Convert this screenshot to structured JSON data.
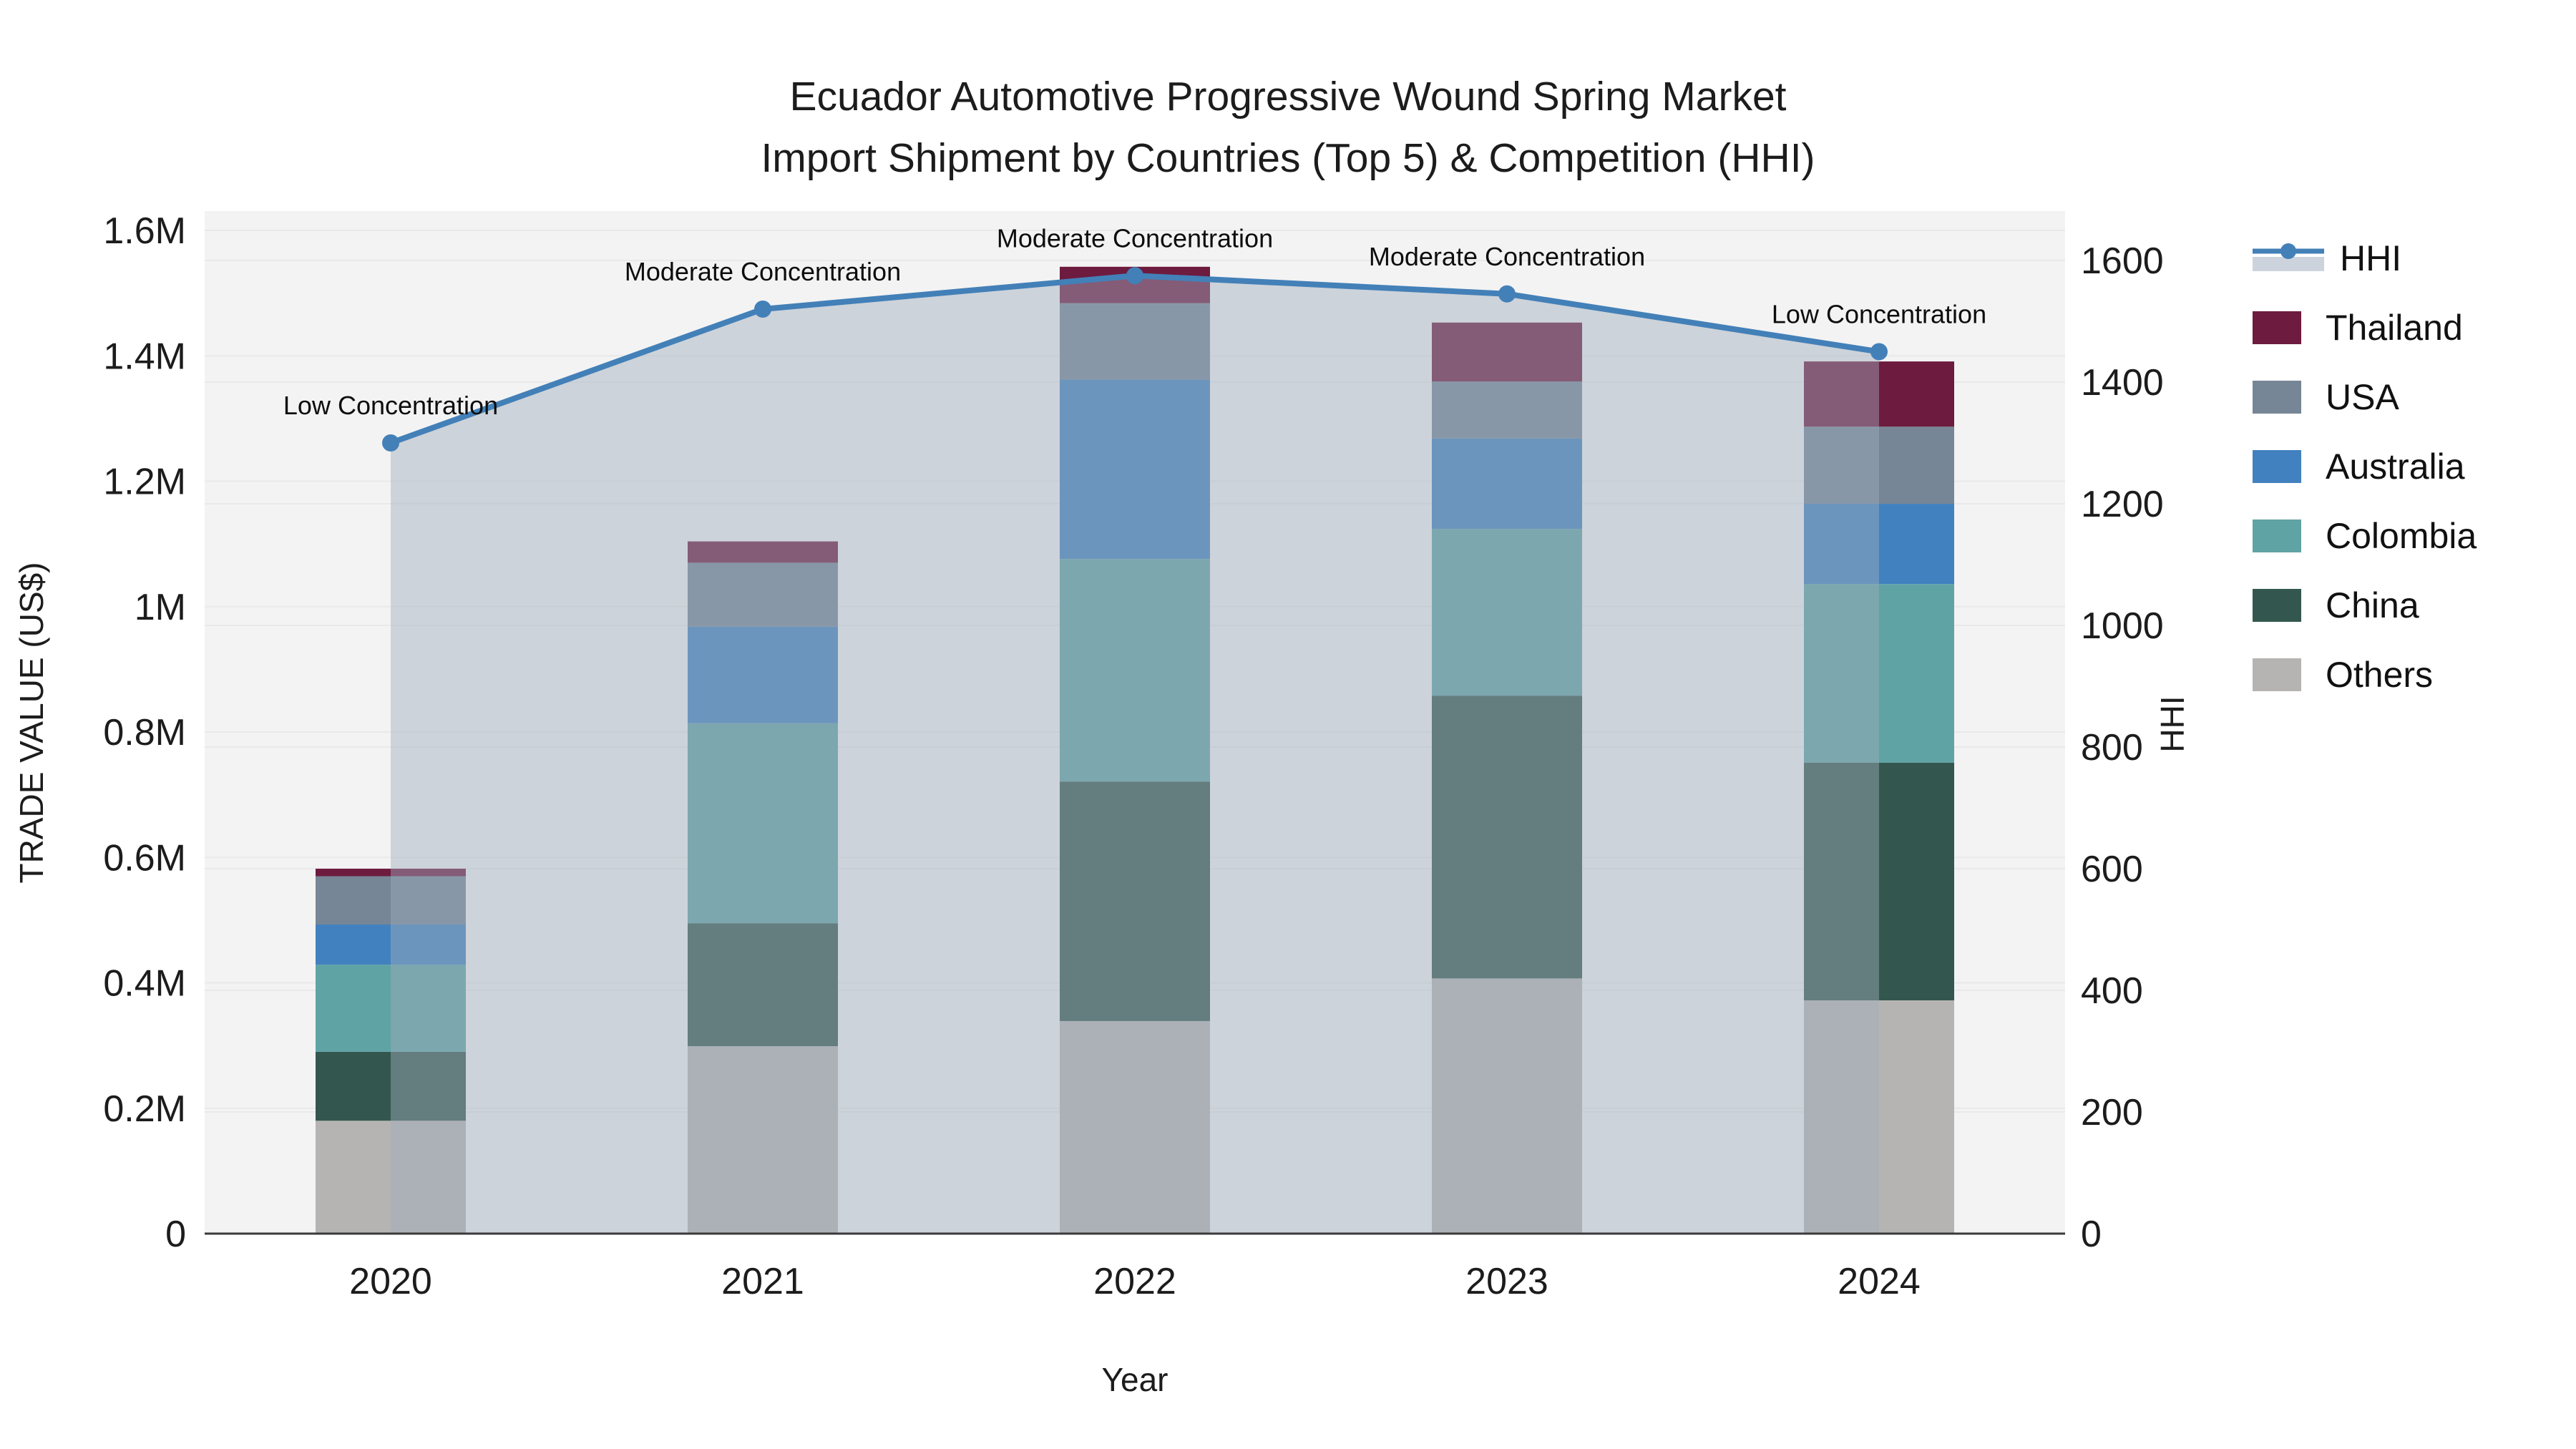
{
  "title": {
    "line1": "Ecuador Automotive Progressive Wound Spring Market",
    "line2": "Import Shipment by Countries (Top 5) & Competition (HHI)"
  },
  "axes": {
    "left": {
      "title": "TRADE VALUE (US$)",
      "tick_labels": [
        "0",
        "0.2M",
        "0.4M",
        "0.6M",
        "0.8M",
        "1M",
        "1.2M",
        "1.4M",
        "1.6M"
      ],
      "tick_values": [
        0,
        200000,
        400000,
        600000,
        800000,
        1000000,
        1200000,
        1400000,
        1600000
      ]
    },
    "right": {
      "title": "HHI",
      "tick_labels": [
        "0",
        "200",
        "400",
        "600",
        "800",
        "1000",
        "1200",
        "1400",
        "1600"
      ],
      "tick_values": [
        0,
        200,
        400,
        600,
        800,
        1000,
        1200,
        1400,
        1600
      ]
    },
    "x": {
      "title": "Year"
    }
  },
  "legend_items": [
    {
      "label": "HHI",
      "kind": "line",
      "color": "#4380B8",
      "band_color": "#CDD3DC"
    },
    {
      "label": "Thailand",
      "kind": "box",
      "color": "#6D1B3E"
    },
    {
      "label": "USA",
      "kind": "box",
      "color": "#768696"
    },
    {
      "label": "Australia",
      "kind": "box",
      "color": "#4281BF"
    },
    {
      "label": "Colombia",
      "kind": "box",
      "color": "#60A3A5"
    },
    {
      "label": "China",
      "kind": "box",
      "color": "#33574E"
    },
    {
      "label": "Others",
      "kind": "box",
      "color": "#B6B4B2"
    }
  ],
  "chart_data": {
    "type": "bar",
    "subtype": "stacked-bars-with-line",
    "title": "Ecuador Automotive Progressive Wound Spring Market — Import Shipment by Countries (Top 5) & Competition (HHI)",
    "categories": [
      "2020",
      "2021",
      "2022",
      "2023",
      "2024"
    ],
    "xlabel": "Year",
    "ylabel": "TRADE VALUE (US$)",
    "y2label": "HHI",
    "ylim": [
      0,
      1600000
    ],
    "y2lim": [
      0,
      1600
    ],
    "grid": true,
    "legend_position": "right",
    "series": [
      {
        "name": "Others",
        "color": "#B6B4B2",
        "values": [
          180000,
          299000,
          339000,
          407000,
          372000
        ]
      },
      {
        "name": "China",
        "color": "#33574E",
        "values": [
          110000,
          196000,
          382000,
          451000,
          379000
        ]
      },
      {
        "name": "Colombia",
        "color": "#60A3A5",
        "values": [
          139000,
          319000,
          355000,
          266000,
          285000
        ]
      },
      {
        "name": "Australia",
        "color": "#4281BF",
        "values": [
          64000,
          154000,
          286000,
          144000,
          128000
        ]
      },
      {
        "name": "USA",
        "color": "#768696",
        "values": [
          77000,
          102000,
          122000,
          91000,
          123000
        ]
      },
      {
        "name": "Thailand",
        "color": "#6D1B3E",
        "values": [
          12000,
          34000,
          58000,
          94000,
          104000
        ]
      }
    ],
    "bar_totals": [
      582000,
      1104000,
      1542000,
      1453000,
      1391000
    ],
    "line_series": {
      "name": "HHI",
      "axis": "right",
      "color": "#4380B8",
      "area_fill_color": "rgba(160,172,188,0.45)",
      "values": [
        1300,
        1520,
        1575,
        1545,
        1450
      ]
    },
    "annotations": [
      {
        "x": "2020",
        "text": "Low Concentration"
      },
      {
        "x": "2021",
        "text": "Moderate Concentration"
      },
      {
        "x": "2022",
        "text": "Moderate Concentration"
      },
      {
        "x": "2023",
        "text": "Moderate Concentration"
      },
      {
        "x": "2024",
        "text": "Low Concentration"
      }
    ],
    "colors": {
      "plot_background": "#F3F3F3",
      "grid_line": "#E9E9E9",
      "axis_line": "#3A3A3A",
      "text": "#1C1C1C"
    }
  }
}
